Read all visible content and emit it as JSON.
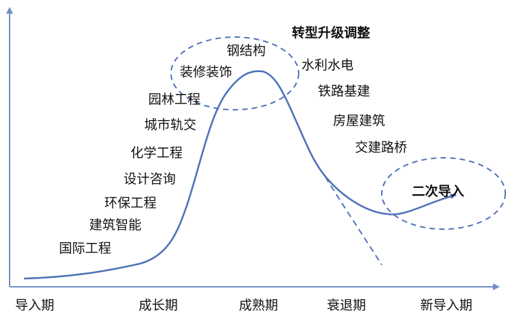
{
  "stages": [
    "导入期",
    "成长期",
    "成熟期",
    "衰退期",
    "新导入期"
  ],
  "rising_industries": [
    "国际工程",
    "建筑智能",
    "环保工程",
    "设计咨询",
    "化学工程",
    "城市轨交",
    "园林工程"
  ],
  "peak_industries": [
    "装修装饰",
    "钢结构"
  ],
  "declining_industries": [
    "水利水电",
    "铁路基建",
    "房屋建筑",
    "交建路桥"
  ],
  "headings": {
    "transition": "转型升级调整",
    "reintroduction": "二次导入"
  },
  "colors": {
    "axis": "#6f8fc4",
    "curve": "#4f73b8",
    "dashed": "#4f73b8",
    "text": "#111111"
  }
}
